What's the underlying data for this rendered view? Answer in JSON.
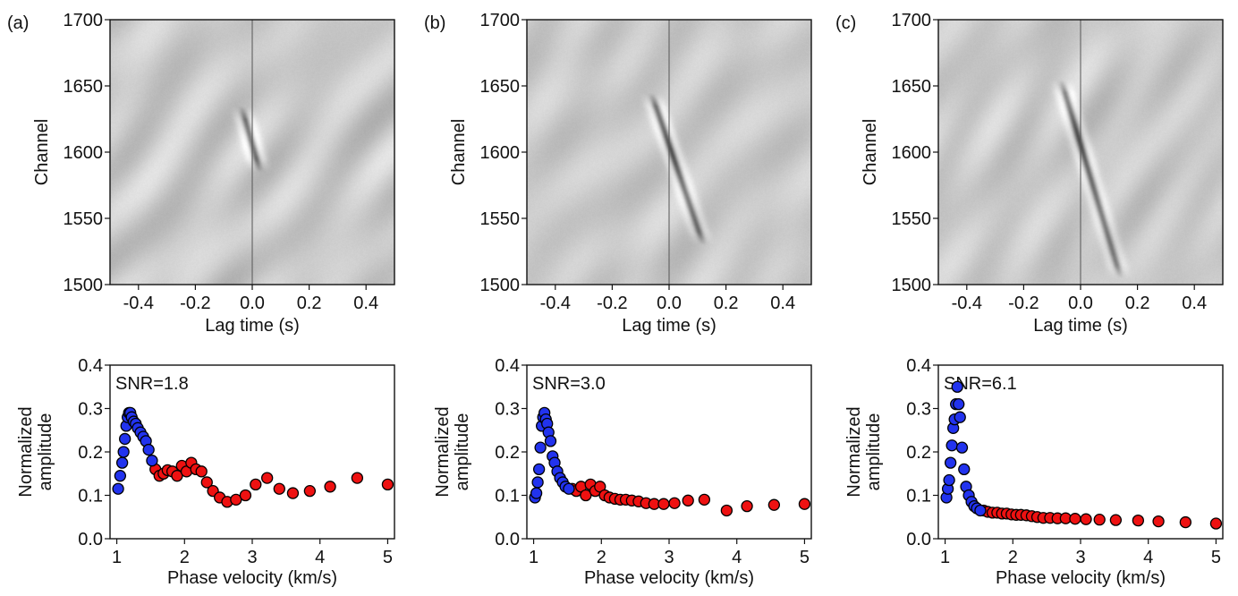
{
  "figure": {
    "colors": {
      "low": "#2233ee",
      "high": "#ee1111",
      "axis": "#111111",
      "bg": "#c9c9c9"
    },
    "panels": [
      {
        "letter": "(a)",
        "snr_label": "SNR=1.8",
        "gather": {
          "xlabel": "Lag time (s)",
          "ylabel": "Channel",
          "xticks": [
            "-0.4",
            "-0.2",
            "0.0",
            "0.2",
            "0.4"
          ],
          "yticks": [
            "1500",
            "1550",
            "1600",
            "1650",
            "1700"
          ]
        },
        "spectrum": {
          "xlabel": "Phase velocity (km/s)",
          "ylabel": "Normalized amplitude",
          "xticks": [
            "1",
            "2",
            "3",
            "4",
            "5"
          ],
          "yticks": [
            "0.0",
            "0.1",
            "0.2",
            "0.3",
            "0.4"
          ]
        }
      },
      {
        "letter": "(b)",
        "snr_label": "SNR=3.0",
        "gather": {
          "xlabel": "Lag time (s)",
          "ylabel": "Channel",
          "xticks": [
            "-0.4",
            "-0.2",
            "0.0",
            "0.2",
            "0.4"
          ],
          "yticks": [
            "1500",
            "1550",
            "1600",
            "1650",
            "1700"
          ]
        },
        "spectrum": {
          "xlabel": "Phase velocity (km/s)",
          "ylabel": "Normalized amplitude",
          "xticks": [
            "1",
            "2",
            "3",
            "4",
            "5"
          ],
          "yticks": [
            "0.0",
            "0.1",
            "0.2",
            "0.3",
            "0.4"
          ]
        }
      },
      {
        "letter": "(c)",
        "snr_label": "SNR=6.1",
        "gather": {
          "xlabel": "Lag time (s)",
          "ylabel": "Channel",
          "xticks": [
            "-0.4",
            "-0.2",
            "0.0",
            "0.2",
            "0.4"
          ],
          "yticks": [
            "1500",
            "1550",
            "1600",
            "1650",
            "1700"
          ]
        },
        "spectrum": {
          "xlabel": "Phase velocity (km/s)",
          "ylabel": "Normalized amplitude",
          "xticks": [
            "1",
            "2",
            "3",
            "4",
            "5"
          ],
          "yticks": [
            "0.0",
            "0.1",
            "0.2",
            "0.3",
            "0.4"
          ]
        }
      }
    ]
  },
  "chart_data": [
    {
      "type": "heatmap",
      "panel": "(a)",
      "title": "",
      "xlabel": "Lag time (s)",
      "ylabel": "Channel",
      "xlim": [
        -0.5,
        0.5
      ],
      "ylim": [
        1500,
        1700
      ],
      "colormap": "gray",
      "grid": false,
      "signal": {
        "t0": 0.0,
        "ch0": 1605,
        "slope_s_per_channel": -0.0013,
        "ch_top": 1625,
        "ch_bottom": 1595,
        "strength": 0.9
      }
    },
    {
      "type": "scatter",
      "panel": "(a)",
      "title": "",
      "xlabel": "Phase velocity (km/s)",
      "ylabel": "Normalized amplitude",
      "xlim": [
        0.9,
        5.1
      ],
      "ylim": [
        0,
        0.4
      ],
      "grid": false,
      "annotation": "SNR=1.8",
      "series": [
        {
          "color": "blue",
          "x": [
            1.02,
            1.05,
            1.08,
            1.1,
            1.12,
            1.14,
            1.16,
            1.18,
            1.2,
            1.22,
            1.25,
            1.28,
            1.31,
            1.35,
            1.39,
            1.43,
            1.47,
            1.52
          ],
          "y": [
            0.115,
            0.145,
            0.175,
            0.2,
            0.23,
            0.26,
            0.28,
            0.29,
            0.29,
            0.28,
            0.27,
            0.265,
            0.255,
            0.245,
            0.235,
            0.225,
            0.205,
            0.18
          ]
        },
        {
          "color": "red",
          "x": [
            1.57,
            1.63,
            1.69,
            1.75,
            1.82,
            1.89,
            1.96,
            2.03,
            2.1,
            2.17,
            2.25,
            2.33,
            2.42,
            2.52,
            2.63,
            2.76,
            2.9,
            3.05,
            3.22,
            3.4,
            3.6,
            3.85,
            4.15,
            4.55,
            5.0
          ],
          "y": [
            0.16,
            0.145,
            0.15,
            0.158,
            0.155,
            0.145,
            0.168,
            0.155,
            0.175,
            0.16,
            0.155,
            0.13,
            0.11,
            0.095,
            0.085,
            0.09,
            0.1,
            0.125,
            0.14,
            0.115,
            0.105,
            0.11,
            0.12,
            0.14,
            0.125
          ]
        }
      ]
    },
    {
      "type": "heatmap",
      "panel": "(b)",
      "title": "",
      "xlabel": "Lag time (s)",
      "ylabel": "Channel",
      "xlim": [
        -0.5,
        0.5
      ],
      "ylim": [
        1500,
        1700
      ],
      "colormap": "gray",
      "grid": false,
      "signal": {
        "t0": 0.0,
        "ch0": 1605,
        "slope_s_per_channel": -0.0016,
        "ch_top": 1635,
        "ch_bottom": 1540,
        "strength": 1.0
      }
    },
    {
      "type": "scatter",
      "panel": "(b)",
      "title": "",
      "xlabel": "Phase velocity (km/s)",
      "ylabel": "Normalized amplitude",
      "xlim": [
        0.9,
        5.1
      ],
      "ylim": [
        0,
        0.4
      ],
      "grid": false,
      "annotation": "SNR=3.0",
      "series": [
        {
          "color": "blue",
          "x": [
            1.02,
            1.04,
            1.06,
            1.08,
            1.1,
            1.12,
            1.14,
            1.16,
            1.18,
            1.2,
            1.22,
            1.25,
            1.28,
            1.31,
            1.35,
            1.39,
            1.43,
            1.47,
            1.52
          ],
          "y": [
            0.095,
            0.105,
            0.13,
            0.16,
            0.21,
            0.26,
            0.28,
            0.29,
            0.275,
            0.265,
            0.245,
            0.225,
            0.19,
            0.175,
            0.155,
            0.14,
            0.13,
            0.12,
            0.115
          ]
        },
        {
          "color": "red",
          "x": [
            1.57,
            1.63,
            1.7,
            1.77,
            1.84,
            1.91,
            1.98,
            2.05,
            2.12,
            2.2,
            2.28,
            2.36,
            2.45,
            2.55,
            2.66,
            2.78,
            2.92,
            3.08,
            3.28,
            3.52,
            3.85,
            4.15,
            4.55,
            5.0
          ],
          "y": [
            0.115,
            0.11,
            0.12,
            0.1,
            0.125,
            0.11,
            0.12,
            0.1,
            0.095,
            0.092,
            0.09,
            0.09,
            0.088,
            0.086,
            0.082,
            0.08,
            0.08,
            0.082,
            0.088,
            0.09,
            0.065,
            0.075,
            0.078,
            0.08
          ]
        }
      ]
    },
    {
      "type": "heatmap",
      "panel": "(c)",
      "title": "",
      "xlabel": "Lag time (s)",
      "ylabel": "Channel",
      "xlim": [
        -0.5,
        0.5
      ],
      "ylim": [
        1500,
        1700
      ],
      "colormap": "gray",
      "grid": false,
      "signal": {
        "t0": 0.0,
        "ch0": 1605,
        "slope_s_per_channel": -0.0014,
        "ch_top": 1645,
        "ch_bottom": 1515,
        "strength": 1.0
      }
    },
    {
      "type": "scatter",
      "panel": "(c)",
      "title": "",
      "xlabel": "Phase velocity (km/s)",
      "ylabel": "Normalized amplitude",
      "xlim": [
        0.9,
        5.1
      ],
      "ylim": [
        0,
        0.4
      ],
      "grid": false,
      "annotation": "SNR=6.1",
      "series": [
        {
          "color": "blue",
          "x": [
            1.02,
            1.04,
            1.06,
            1.08,
            1.1,
            1.12,
            1.14,
            1.16,
            1.18,
            1.2,
            1.22,
            1.25,
            1.28,
            1.31,
            1.35,
            1.39,
            1.43,
            1.47,
            1.52
          ],
          "y": [
            0.095,
            0.115,
            0.135,
            0.175,
            0.215,
            0.255,
            0.275,
            0.31,
            0.35,
            0.31,
            0.28,
            0.21,
            0.16,
            0.12,
            0.1,
            0.085,
            0.075,
            0.07,
            0.065
          ]
        },
        {
          "color": "red",
          "x": [
            1.57,
            1.63,
            1.7,
            1.77,
            1.84,
            1.91,
            1.98,
            2.05,
            2.12,
            2.2,
            2.28,
            2.36,
            2.45,
            2.55,
            2.66,
            2.78,
            2.92,
            3.08,
            3.28,
            3.52,
            3.85,
            4.15,
            4.55,
            5.0
          ],
          "y": [
            0.065,
            0.062,
            0.06,
            0.06,
            0.058,
            0.058,
            0.056,
            0.055,
            0.055,
            0.054,
            0.052,
            0.05,
            0.048,
            0.048,
            0.047,
            0.047,
            0.046,
            0.045,
            0.044,
            0.043,
            0.042,
            0.04,
            0.038,
            0.035
          ]
        }
      ]
    }
  ]
}
